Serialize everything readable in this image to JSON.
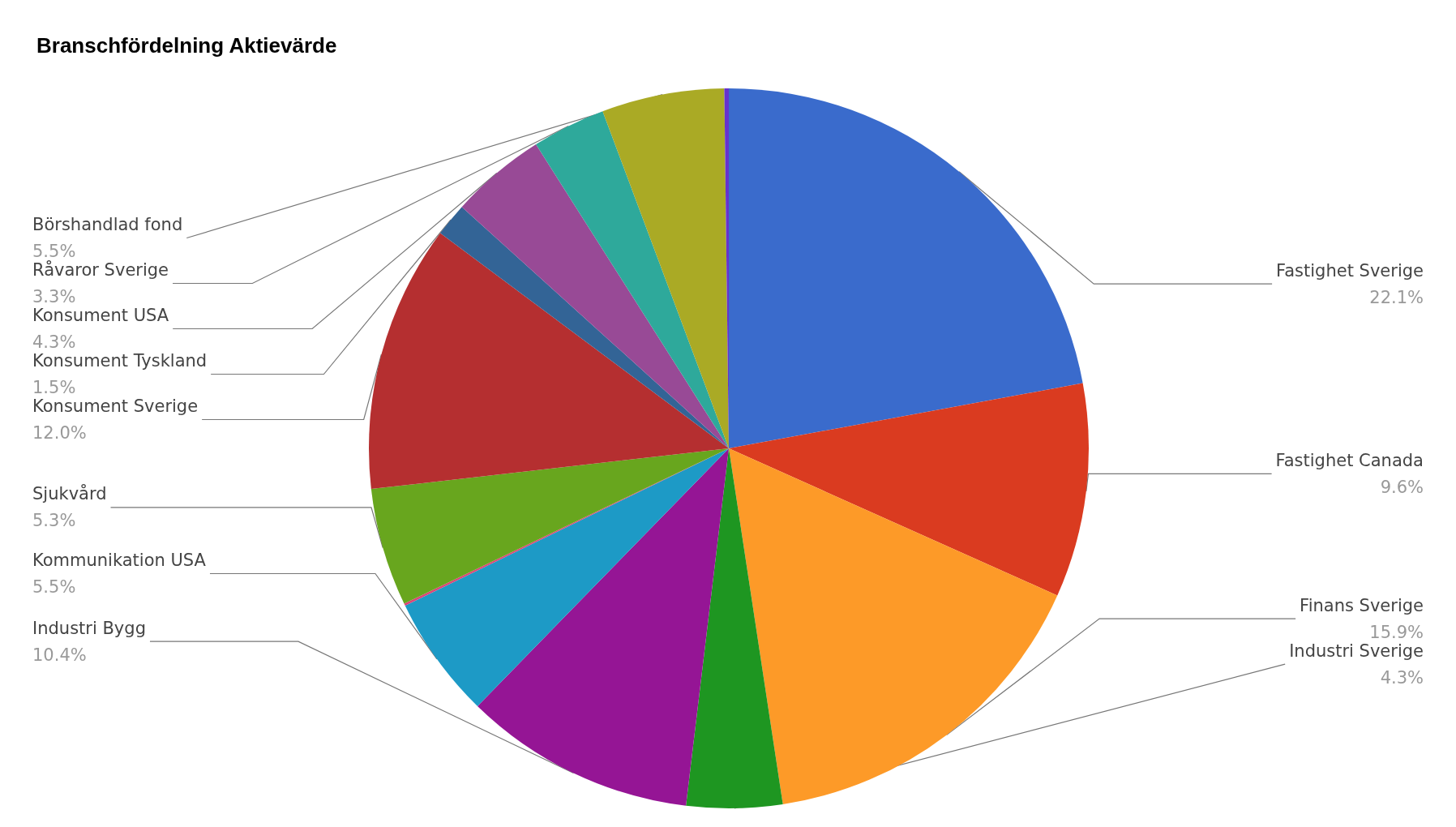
{
  "chart_data": {
    "type": "pie",
    "title": "Branschfördelning Aktievärde",
    "categories": [
      "Fastighet Sverige",
      "Fastighet Canada",
      "Finans Sverige",
      "Industri Sverige",
      "Industri Bygg",
      "Kommunikation USA",
      null,
      "Sjukvård",
      "Konsument Sverige",
      "Konsument Tyskland",
      "Konsument USA",
      "Råvaror Sverige",
      "Börshandlad fond",
      null
    ],
    "values": [
      22.1,
      9.6,
      15.9,
      4.3,
      10.4,
      5.5,
      0.1,
      5.3,
      12.0,
      1.5,
      4.3,
      3.3,
      5.5,
      0.2
    ],
    "value_labels": [
      "22.1%",
      "9.6%",
      "15.9%",
      "4.3%",
      "10.4%",
      "5.5%",
      null,
      "5.3%",
      "12.0%",
      "1.5%",
      "4.3%",
      "3.3%",
      "5.5%",
      null
    ],
    "colors": [
      "#3a6bcc",
      "#da3b20",
      "#fd9a28",
      "#1e9621",
      "#951595",
      "#1d9ac6",
      "#dd4477",
      "#68a61e",
      "#b52f30",
      "#336496",
      "#984a96",
      "#2ea99b",
      "#aaaa25",
      "#6633cc"
    ],
    "legend": false
  }
}
